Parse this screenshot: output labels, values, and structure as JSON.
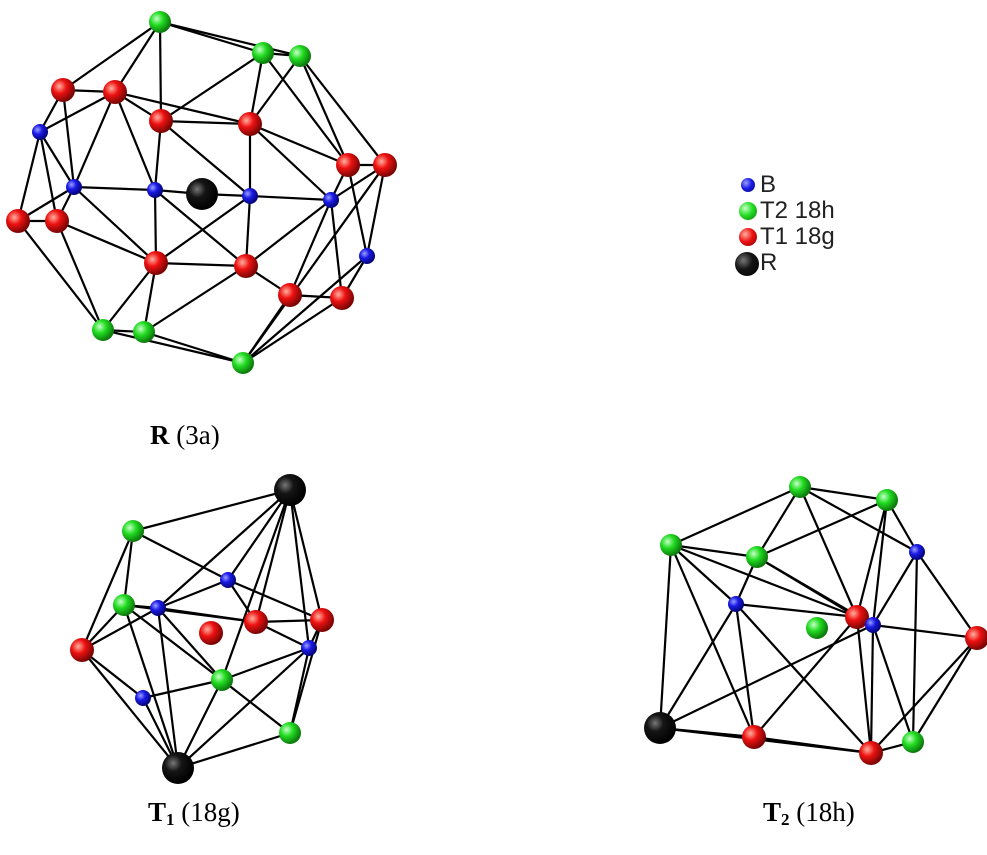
{
  "legend": {
    "items": [
      {
        "label": "B",
        "color": "#1010e0",
        "kind": "B"
      },
      {
        "label": "T2 18h",
        "color": "#22dd22",
        "kind": "T2"
      },
      {
        "label": "T1 18g",
        "color": "#ee1111",
        "kind": "T1"
      },
      {
        "label": "R",
        "color": "#111111",
        "kind": "R"
      }
    ]
  },
  "panels": {
    "R": {
      "symbol": "R",
      "sub": "",
      "site": "(3a)"
    },
    "T1": {
      "symbol": "T",
      "sub": "1",
      "site": "(18g)"
    },
    "T2": {
      "symbol": "T",
      "sub": "2",
      "site": "(18h)"
    }
  },
  "colors": {
    "B": "#1010e0",
    "T2": "#22dd22",
    "T1": "#ee1111",
    "R": "#111111",
    "bond": "#000000"
  }
}
